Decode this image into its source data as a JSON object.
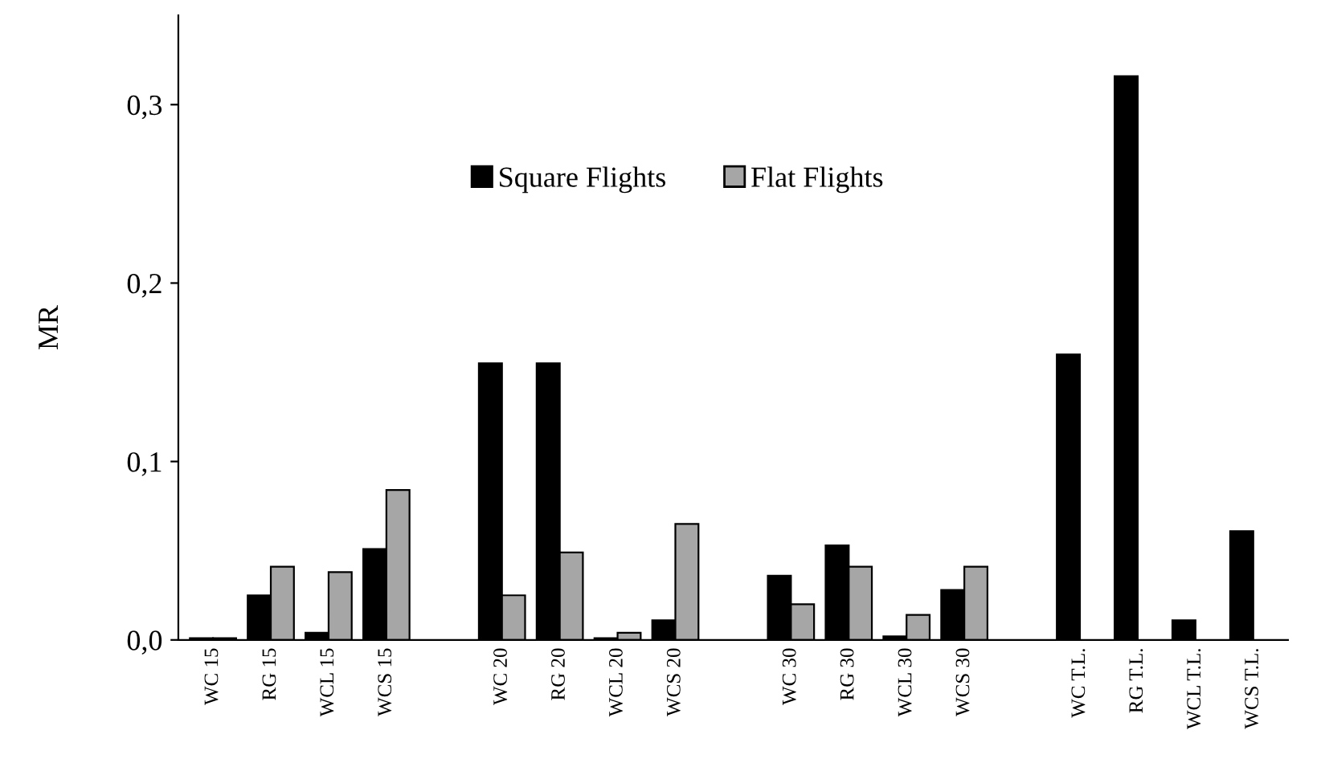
{
  "chart_data": {
    "type": "bar",
    "ylabel": "MR",
    "categories": [
      "WC 15",
      "RG 15",
      "WCL 15",
      "WCS 15",
      null,
      "WC 20",
      "RG 20",
      "WCL 20",
      "WCS 20",
      null,
      "WC 30",
      "RG 30",
      "WCL 30",
      "WCS 30",
      null,
      "WC T.L.",
      "RG T.L.",
      "WCL T.L.",
      "WCS T.L."
    ],
    "series": [
      {
        "name": "Square Flights",
        "color": "#000000",
        "values": [
          0.001,
          0.025,
          0.004,
          0.051,
          null,
          0.155,
          0.155,
          0.001,
          0.011,
          null,
          0.036,
          0.053,
          0.002,
          0.028,
          null,
          0.16,
          0.316,
          0.011,
          0.061
        ]
      },
      {
        "name": "Flat Flights",
        "color": "#a6a6a6",
        "values": [
          0.001,
          0.041,
          0.038,
          0.084,
          null,
          0.025,
          0.049,
          0.004,
          0.065,
          null,
          0.02,
          0.041,
          0.014,
          0.041,
          null,
          null,
          null,
          null,
          null
        ]
      }
    ],
    "ylim": [
      0,
      0.35
    ],
    "yticks": [
      {
        "value": 0,
        "label": "0,0"
      },
      {
        "value": 0.1,
        "label": "0,1"
      },
      {
        "value": 0.2,
        "label": "0,2"
      },
      {
        "value": 0.3,
        "label": "0,3"
      }
    ],
    "legend": "top",
    "grid": false
  }
}
